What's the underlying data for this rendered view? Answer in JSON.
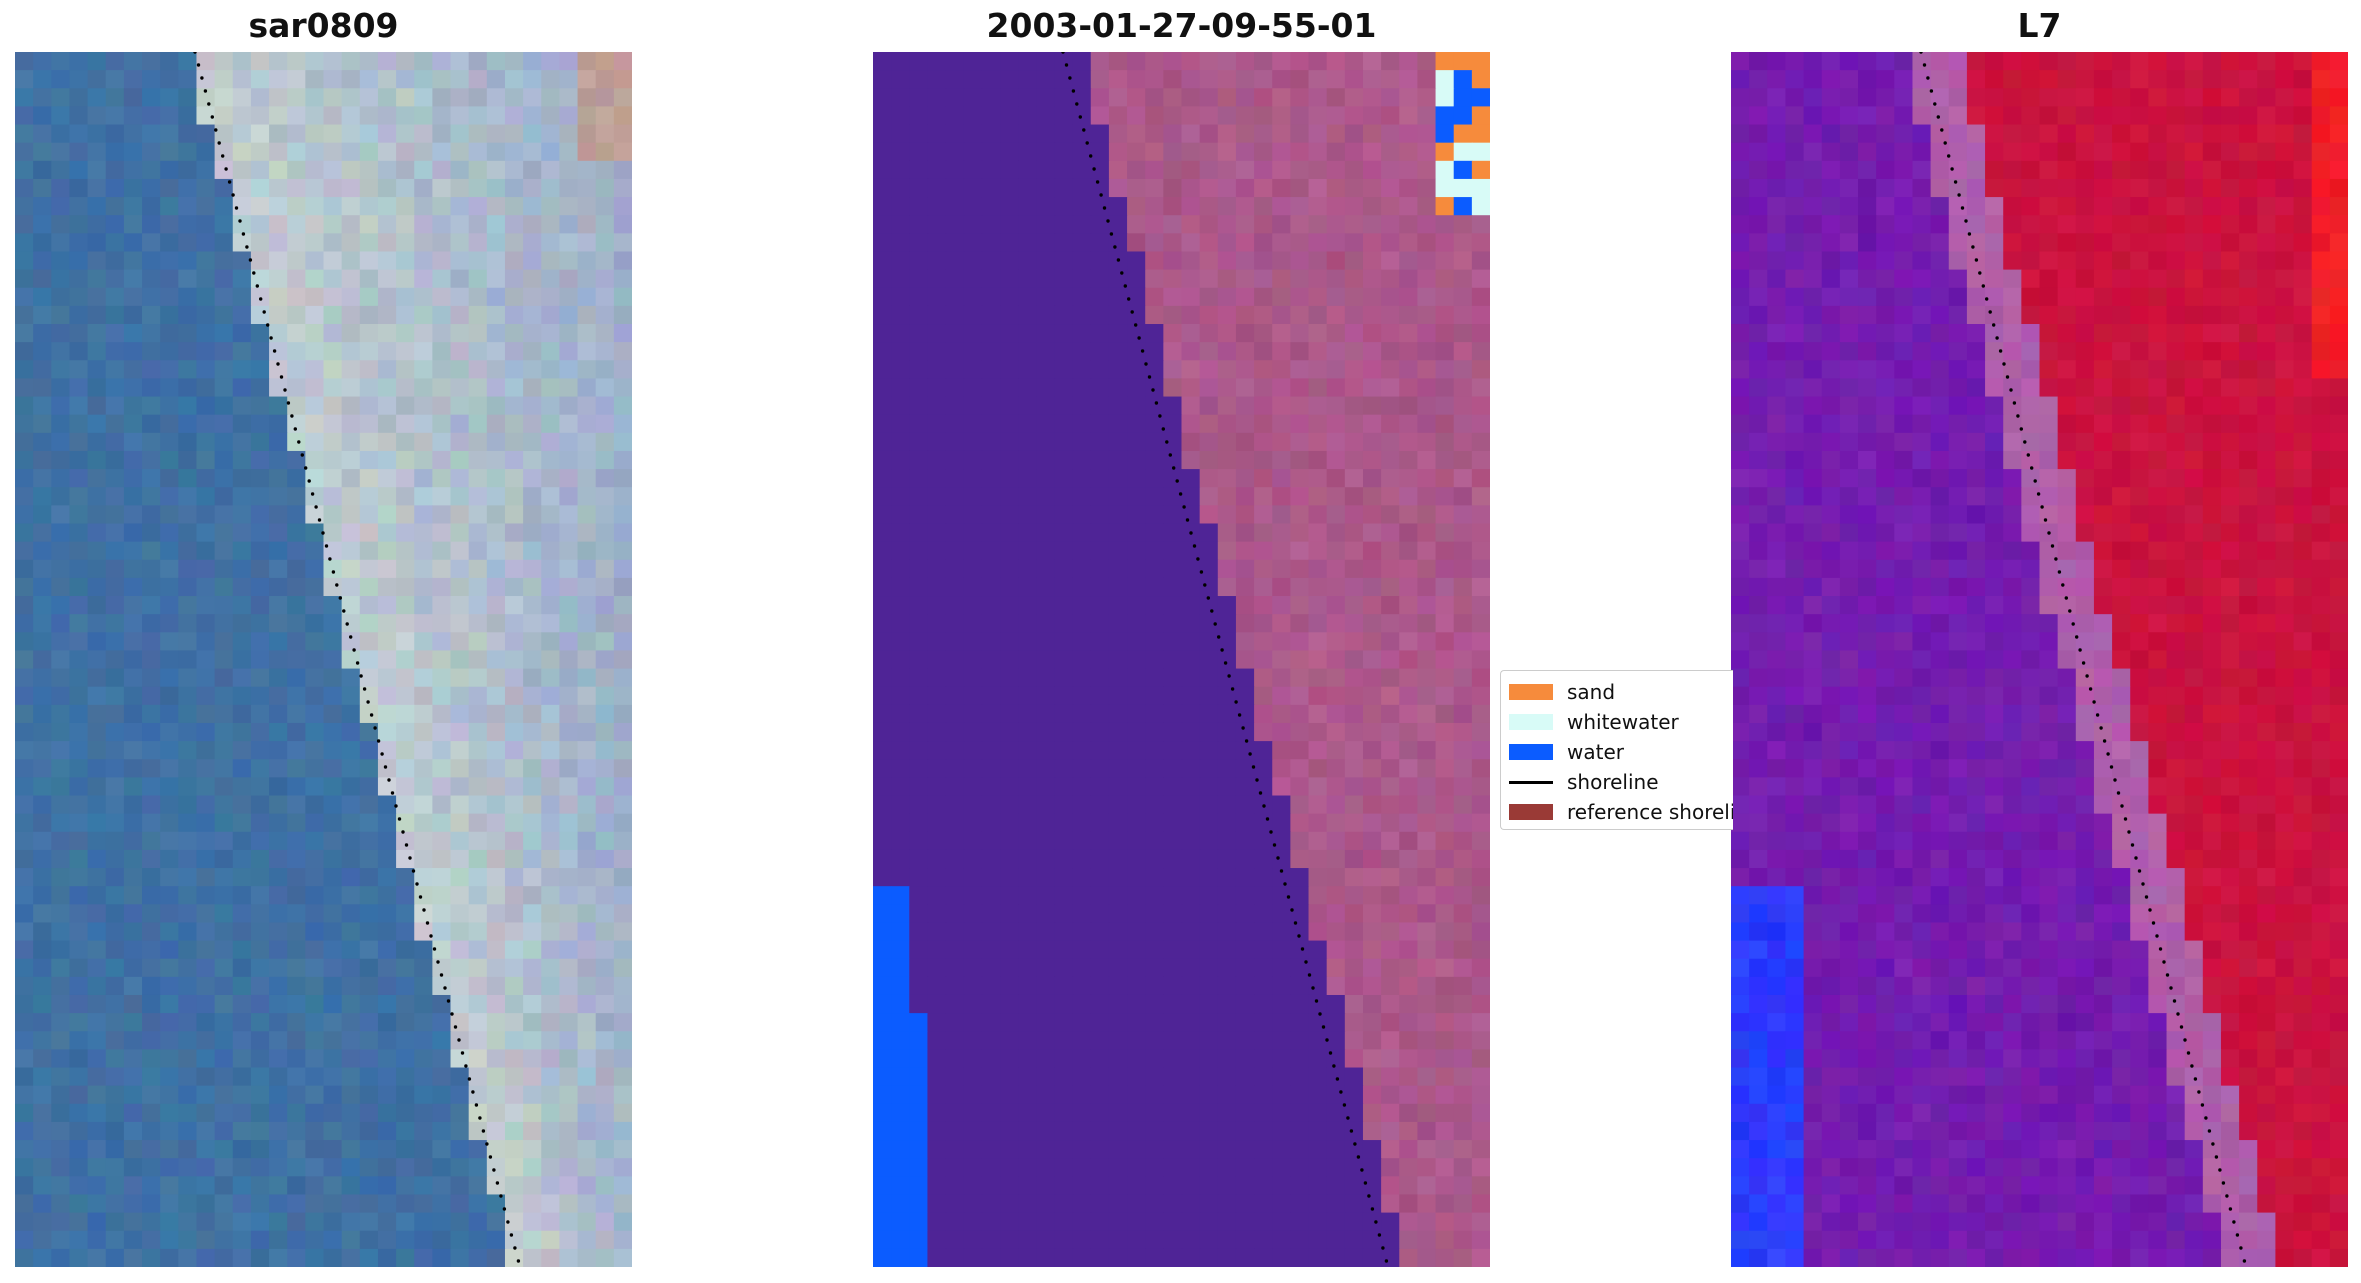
{
  "figure": {
    "panels": [
      {
        "title": "sar0809",
        "kind": "rgb"
      },
      {
        "title": "2003-01-27-09-55-01",
        "kind": "classified"
      },
      {
        "title": "L7",
        "kind": "index"
      }
    ],
    "legend": {
      "items": [
        {
          "label": "sand",
          "color": "#f68b3c",
          "type": "patch"
        },
        {
          "label": "whitewater",
          "color": "#d8fbf7",
          "type": "patch"
        },
        {
          "label": "water",
          "color": "#0b5cff",
          "type": "patch"
        },
        {
          "label": "shoreline",
          "color": "#000000",
          "type": "line"
        },
        {
          "label": "reference shoreline",
          "color": "#9a3a36",
          "type": "patch"
        }
      ]
    },
    "colors": {
      "sea_rgb": "#3e6fa4",
      "beach_rgb": "#c5cfd0",
      "class_background": "#4f2496",
      "class_land": "#a55383",
      "index_low": "#7b1fb0",
      "index_high": "#c8123c",
      "index_water": "#2a3cff"
    }
  }
}
